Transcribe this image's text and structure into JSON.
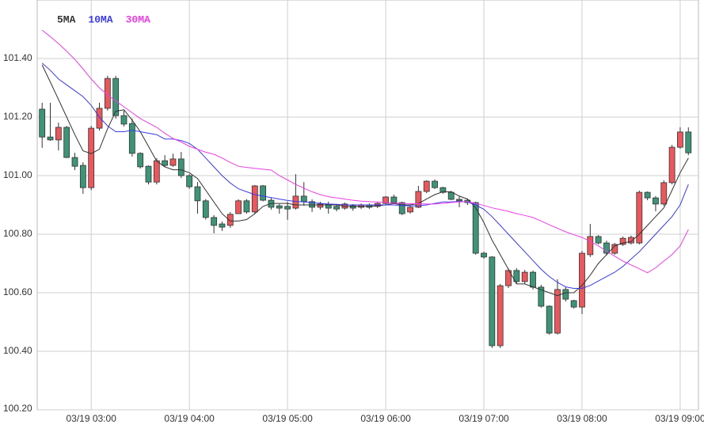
{
  "chart_data": {
    "type": "candlestick",
    "categories": [
      null,
      null,
      null,
      null,
      null,
      null,
      "03/19 03:00",
      null,
      null,
      null,
      null,
      null,
      null,
      null,
      null,
      null,
      null,
      null,
      "03/19 04:00",
      null,
      null,
      null,
      null,
      null,
      null,
      null,
      null,
      null,
      null,
      null,
      "03/19 05:00",
      null,
      null,
      null,
      null,
      null,
      null,
      null,
      null,
      null,
      null,
      null,
      "03/19 06:00",
      null,
      null,
      null,
      null,
      null,
      null,
      null,
      null,
      null,
      null,
      null,
      "03/19 07:00",
      null,
      null,
      null,
      null,
      null,
      null,
      null,
      null,
      null,
      null,
      null,
      "03/19 08:00",
      null,
      null,
      null,
      null,
      null,
      null,
      null,
      null,
      null,
      null,
      null,
      "03/19 09:00",
      null
    ],
    "open": [
      101.227,
      101.132,
      101.122,
      101.165,
      101.062,
      101.035,
      100.959,
      101.162,
      101.23,
      101.332,
      101.205,
      101.178,
      101.076,
      101.032,
      100.978,
      101.051,
      101.035,
      101.057,
      101.0,
      100.962,
      100.914,
      100.857,
      100.835,
      100.83,
      100.87,
      100.914,
      100.876,
      100.965,
      100.916,
      100.897,
      100.895,
      100.889,
      100.93,
      100.911,
      100.892,
      100.903,
      100.895,
      100.889,
      100.897,
      100.892,
      100.9,
      100.895,
      100.905,
      100.927,
      100.908,
      100.876,
      100.892,
      100.946,
      100.981,
      100.959,
      100.943,
      100.919,
      100.916,
      100.908,
      100.735,
      100.722,
      100.419,
      100.624,
      100.676,
      100.638,
      100.67,
      100.619,
      100.554,
      100.462,
      100.611,
      100.573,
      100.551,
      100.73,
      100.792,
      100.77,
      100.735,
      100.765,
      100.77,
      100.77,
      100.943,
      100.924,
      100.903,
      100.976,
      101.097,
      101.149
    ],
    "high": [
      101.249,
      101.249,
      101.181,
      101.17,
      101.078,
      101.046,
      101.17,
      101.249,
      101.341,
      101.341,
      101.222,
      101.195,
      101.08,
      101.035,
      101.06,
      101.07,
      101.075,
      101.081,
      101.005,
      100.978,
      100.92,
      100.865,
      100.843,
      100.876,
      100.919,
      100.92,
      100.968,
      100.968,
      100.924,
      100.903,
      100.911,
      101.005,
      100.978,
      100.919,
      100.911,
      100.911,
      100.903,
      100.908,
      100.903,
      100.905,
      100.905,
      100.911,
      100.93,
      100.935,
      100.911,
      100.897,
      100.965,
      100.984,
      100.987,
      100.962,
      100.948,
      100.93,
      100.922,
      100.911,
      100.74,
      100.725,
      100.63,
      100.684,
      100.684,
      100.678,
      100.676,
      100.627,
      100.557,
      100.646,
      100.62,
      100.576,
      100.743,
      100.835,
      100.797,
      100.778,
      100.77,
      100.792,
      100.795,
      100.949,
      100.946,
      100.93,
      100.984,
      101.105,
      101.165,
      101.165
    ],
    "low": [
      101.095,
      101.119,
      101.086,
      101.06,
      101.019,
      100.938,
      100.95,
      101.154,
      101.222,
      101.195,
      101.168,
      101.065,
      101.024,
      100.97,
      100.97,
      101.03,
      101.03,
      100.992,
      100.955,
      100.87,
      100.85,
      100.803,
      100.811,
      100.822,
      100.87,
      100.87,
      100.87,
      100.912,
      100.884,
      100.87,
      100.849,
      100.884,
      100.897,
      100.876,
      100.884,
      100.87,
      100.878,
      100.884,
      100.88,
      100.886,
      100.886,
      100.889,
      100.9,
      100.903,
      100.865,
      100.87,
      100.889,
      100.94,
      100.954,
      100.938,
      100.916,
      100.892,
      100.9,
      100.73,
      100.716,
      100.411,
      100.411,
      100.616,
      100.63,
      100.63,
      100.611,
      100.549,
      100.457,
      100.457,
      100.57,
      100.546,
      100.527,
      100.722,
      100.765,
      100.727,
      100.73,
      100.76,
      100.765,
      100.765,
      100.916,
      100.878,
      100.897,
      100.97,
      101.092,
      101.07
    ],
    "close": [
      101.132,
      101.122,
      101.165,
      101.062,
      101.032,
      100.959,
      101.162,
      101.23,
      101.332,
      101.205,
      101.176,
      101.076,
      101.03,
      100.978,
      101.051,
      101.035,
      101.057,
      101.0,
      100.962,
      100.914,
      100.857,
      100.83,
      100.824,
      100.868,
      100.914,
      100.876,
      100.965,
      100.916,
      100.892,
      100.889,
      100.886,
      100.93,
      100.911,
      100.892,
      100.903,
      100.889,
      100.886,
      100.903,
      100.889,
      100.9,
      100.892,
      100.905,
      100.927,
      100.908,
      100.87,
      100.892,
      100.946,
      100.981,
      100.959,
      100.943,
      100.919,
      100.914,
      100.908,
      100.735,
      100.722,
      100.419,
      100.624,
      100.676,
      100.638,
      100.67,
      100.619,
      100.554,
      100.462,
      100.611,
      100.578,
      100.551,
      100.735,
      100.792,
      100.77,
      100.735,
      100.765,
      100.786,
      100.789,
      100.943,
      100.924,
      100.903,
      100.976,
      101.097,
      101.149,
      101.078
    ],
    "up_color": "#e8585c",
    "down_color": "#3e9478",
    "series": [
      {
        "name": "5MA",
        "color": "#333333",
        "values": [
          101.378,
          101.32,
          101.26,
          101.2,
          101.14,
          101.085,
          101.075,
          101.09,
          101.16,
          101.22,
          101.225,
          101.19,
          101.15,
          101.1,
          101.05,
          101.03,
          101.02,
          101.02,
          101.01,
          100.99,
          100.95,
          100.91,
          100.87,
          100.845,
          100.845,
          100.85,
          100.87,
          100.895,
          100.905,
          100.905,
          100.905,
          100.9,
          100.9,
          100.9,
          100.9,
          100.9,
          100.9,
          100.895,
          100.895,
          100.895,
          100.895,
          100.897,
          100.9,
          100.905,
          100.9,
          100.9,
          100.905,
          100.92,
          100.935,
          100.945,
          100.945,
          100.93,
          100.92,
          100.89,
          100.84,
          100.78,
          100.73,
          100.68,
          100.63,
          100.63,
          100.62,
          100.61,
          100.6,
          100.59,
          100.6,
          100.6,
          100.625,
          100.66,
          100.7,
          100.73,
          100.76,
          100.77,
          100.775,
          100.8,
          100.83,
          100.86,
          100.89,
          100.95,
          101.01,
          101.06
        ]
      },
      {
        "name": "10MA",
        "color": "#3a3ae8",
        "values": [
          101.384,
          101.36,
          101.33,
          101.31,
          101.29,
          101.27,
          101.24,
          101.2,
          101.17,
          101.15,
          101.15,
          101.155,
          101.15,
          101.145,
          101.14,
          101.125,
          101.125,
          101.12,
          101.11,
          101.09,
          101.06,
          101.03,
          101.0,
          100.975,
          100.955,
          100.945,
          100.935,
          100.93,
          100.925,
          100.92,
          100.915,
          100.912,
          100.91,
          100.908,
          100.905,
          100.903,
          100.902,
          100.9,
          100.9,
          100.9,
          100.9,
          100.9,
          100.9,
          100.9,
          100.898,
          100.897,
          100.897,
          100.9,
          100.905,
          100.91,
          100.91,
          100.912,
          100.91,
          100.9,
          100.885,
          100.86,
          100.83,
          100.8,
          100.77,
          100.74,
          100.71,
          100.68,
          100.655,
          100.635,
          100.62,
          100.615,
          100.615,
          100.625,
          100.64,
          100.655,
          100.67,
          100.69,
          100.715,
          100.74,
          100.77,
          100.8,
          100.83,
          100.86,
          100.9,
          100.97
        ]
      },
      {
        "name": "30MA",
        "color": "#ee3ee8",
        "values": [
          101.497,
          101.475,
          101.451,
          101.425,
          101.397,
          101.365,
          101.33,
          101.3,
          101.276,
          101.255,
          101.235,
          101.215,
          101.195,
          101.18,
          101.165,
          101.145,
          101.127,
          101.115,
          101.1,
          101.09,
          101.08,
          101.073,
          101.06,
          101.045,
          101.032,
          101.028,
          101.025,
          101.022,
          101.019,
          101.0,
          100.985,
          100.97,
          100.957,
          100.945,
          100.935,
          100.928,
          100.924,
          100.92,
          100.916,
          100.913,
          100.911,
          100.91,
          100.908,
          100.906,
          100.905,
          100.904,
          100.904,
          100.903,
          100.903,
          100.905,
          100.908,
          100.91,
          100.911,
          100.905,
          100.898,
          100.89,
          100.884,
          100.878,
          100.87,
          100.864,
          100.857,
          100.845,
          100.832,
          100.82,
          100.808,
          100.798,
          100.789,
          100.775,
          100.76,
          100.742,
          100.725,
          100.708,
          100.695,
          100.682,
          100.668,
          100.685,
          100.708,
          100.73,
          100.76,
          100.816
        ]
      }
    ],
    "ylim": [
      100.2,
      101.6
    ],
    "yticks": [
      {
        "value": 100.2,
        "label": "100.20"
      },
      {
        "value": 100.4,
        "label": "100.40"
      },
      {
        "value": 100.6,
        "label": "100.60"
      },
      {
        "value": 100.8,
        "label": "100.80"
      },
      {
        "value": 101.0,
        "label": "101.00"
      },
      {
        "value": 101.2,
        "label": "101.20"
      },
      {
        "value": 101.4,
        "label": "101.40"
      }
    ],
    "grid": true
  }
}
